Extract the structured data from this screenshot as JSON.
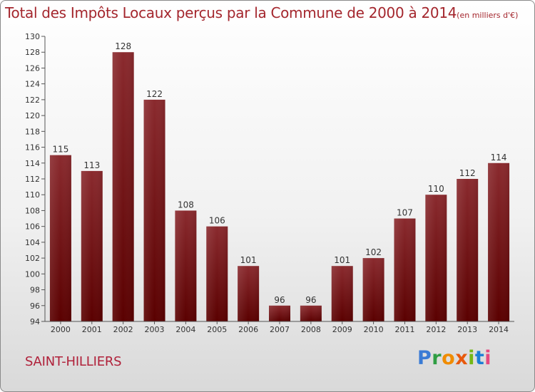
{
  "title": "Total des Impôts Locaux perçus par la Commune de 2000 à 2014",
  "unit": "(en milliers d'€)",
  "commune": "SAINT-HILLIERS",
  "logo": "Proxiti",
  "colors": {
    "bar_top": "#8a2a2e",
    "bar_bottom": "#5a0000",
    "title": "#a4262d",
    "commune": "#b0213a"
  },
  "chart_data": {
    "type": "bar",
    "title": "Total des Impôts Locaux perçus par la Commune de 2000 à 2014",
    "xlabel": "",
    "ylabel": "",
    "categories": [
      "2000",
      "2001",
      "2002",
      "2003",
      "2004",
      "2005",
      "2006",
      "2007",
      "2008",
      "2009",
      "2010",
      "2011",
      "2012",
      "2013",
      "2014"
    ],
    "values": [
      115,
      113,
      128,
      122,
      108,
      106,
      101,
      96,
      96,
      101,
      102,
      107,
      110,
      112,
      114
    ],
    "ylim": [
      94,
      130
    ],
    "yticks": [
      94,
      96,
      98,
      100,
      102,
      104,
      106,
      108,
      110,
      112,
      114,
      116,
      118,
      120,
      122,
      124,
      126,
      128,
      130
    ],
    "grid": false,
    "legend": "none"
  }
}
